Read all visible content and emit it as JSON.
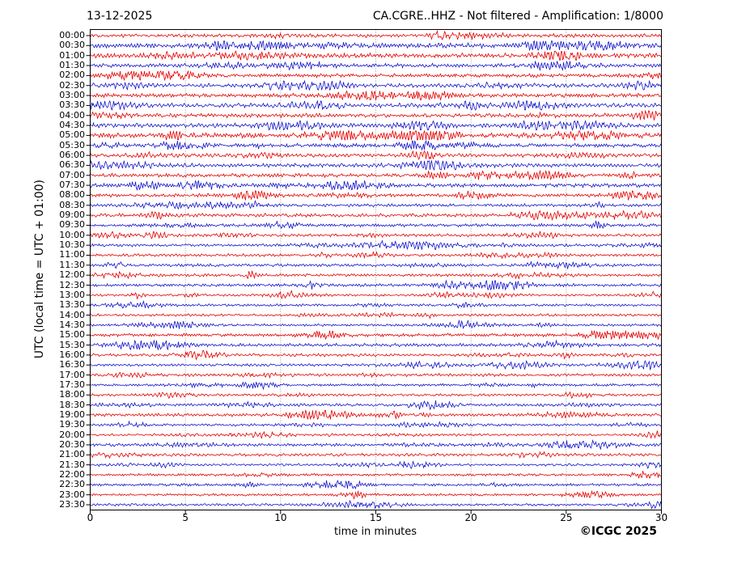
{
  "header": {
    "date": "13-12-2025",
    "station_title": "CA.CGRE..HHZ - Not filtered - Amplification: 1/8000"
  },
  "axes": {
    "x_label": "time in minutes",
    "y_label": "UTC (local time = UTC + 01:00)"
  },
  "footer": {
    "copyright": "©ICGC 2025"
  },
  "chart_data": {
    "type": "line",
    "subtype": "helicorder_day_plot",
    "title": "CA.CGRE..HHZ - Not filtered - Amplification: 1/8000",
    "date": "13-12-2025",
    "xlabel": "time in minutes",
    "ylabel": "UTC (local time = UTC + 01:00)",
    "xlim": [
      0,
      30
    ],
    "xticks": [
      0,
      5,
      10,
      15,
      20,
      25,
      30
    ],
    "grid": {
      "vertical_dotted_minutes": [
        5,
        10,
        15,
        20,
        25
      ],
      "color": "#888888"
    },
    "row_interval_minutes": 30,
    "colors": {
      "hour_trace": "#e60000",
      "half_hour_trace": "#1414cc",
      "frame": "#000000"
    },
    "signal": "continuous seismic background noise; higher amplitude 00:00-09:00, quieter afternoon/evening, no single large event",
    "rows": [
      {
        "label": "00:00",
        "color": "#e60000"
      },
      {
        "label": "00:30",
        "color": "#1414cc"
      },
      {
        "label": "01:00",
        "color": "#e60000"
      },
      {
        "label": "01:30",
        "color": "#1414cc"
      },
      {
        "label": "02:00",
        "color": "#e60000"
      },
      {
        "label": "02:30",
        "color": "#1414cc"
      },
      {
        "label": "03:00",
        "color": "#e60000"
      },
      {
        "label": "03:30",
        "color": "#1414cc"
      },
      {
        "label": "04:00",
        "color": "#e60000"
      },
      {
        "label": "04:30",
        "color": "#1414cc"
      },
      {
        "label": "05:00",
        "color": "#e60000"
      },
      {
        "label": "05:30",
        "color": "#1414cc"
      },
      {
        "label": "06:00",
        "color": "#e60000"
      },
      {
        "label": "06:30",
        "color": "#1414cc"
      },
      {
        "label": "07:00",
        "color": "#e60000"
      },
      {
        "label": "07:30",
        "color": "#1414cc"
      },
      {
        "label": "08:00",
        "color": "#e60000"
      },
      {
        "label": "08:30",
        "color": "#1414cc"
      },
      {
        "label": "09:00",
        "color": "#e60000"
      },
      {
        "label": "09:30",
        "color": "#1414cc"
      },
      {
        "label": "10:00",
        "color": "#e60000"
      },
      {
        "label": "10:30",
        "color": "#1414cc"
      },
      {
        "label": "11:00",
        "color": "#e60000"
      },
      {
        "label": "11:30",
        "color": "#1414cc"
      },
      {
        "label": "12:00",
        "color": "#e60000"
      },
      {
        "label": "12:30",
        "color": "#1414cc"
      },
      {
        "label": "13:00",
        "color": "#e60000"
      },
      {
        "label": "13:30",
        "color": "#1414cc"
      },
      {
        "label": "14:00",
        "color": "#e60000"
      },
      {
        "label": "14:30",
        "color": "#1414cc"
      },
      {
        "label": "15:00",
        "color": "#e60000"
      },
      {
        "label": "15:30",
        "color": "#1414cc"
      },
      {
        "label": "16:00",
        "color": "#e60000"
      },
      {
        "label": "16:30",
        "color": "#1414cc"
      },
      {
        "label": "17:00",
        "color": "#e60000"
      },
      {
        "label": "17:30",
        "color": "#1414cc"
      },
      {
        "label": "18:00",
        "color": "#e60000"
      },
      {
        "label": "18:30",
        "color": "#1414cc"
      },
      {
        "label": "19:00",
        "color": "#e60000"
      },
      {
        "label": "19:30",
        "color": "#1414cc"
      },
      {
        "label": "20:00",
        "color": "#e60000"
      },
      {
        "label": "20:30",
        "color": "#1414cc"
      },
      {
        "label": "21:00",
        "color": "#e60000"
      },
      {
        "label": "21:30",
        "color": "#1414cc"
      },
      {
        "label": "22:00",
        "color": "#e60000"
      },
      {
        "label": "22:30",
        "color": "#1414cc"
      },
      {
        "label": "23:00",
        "color": "#e60000"
      },
      {
        "label": "23:30",
        "color": "#1414cc"
      }
    ]
  }
}
